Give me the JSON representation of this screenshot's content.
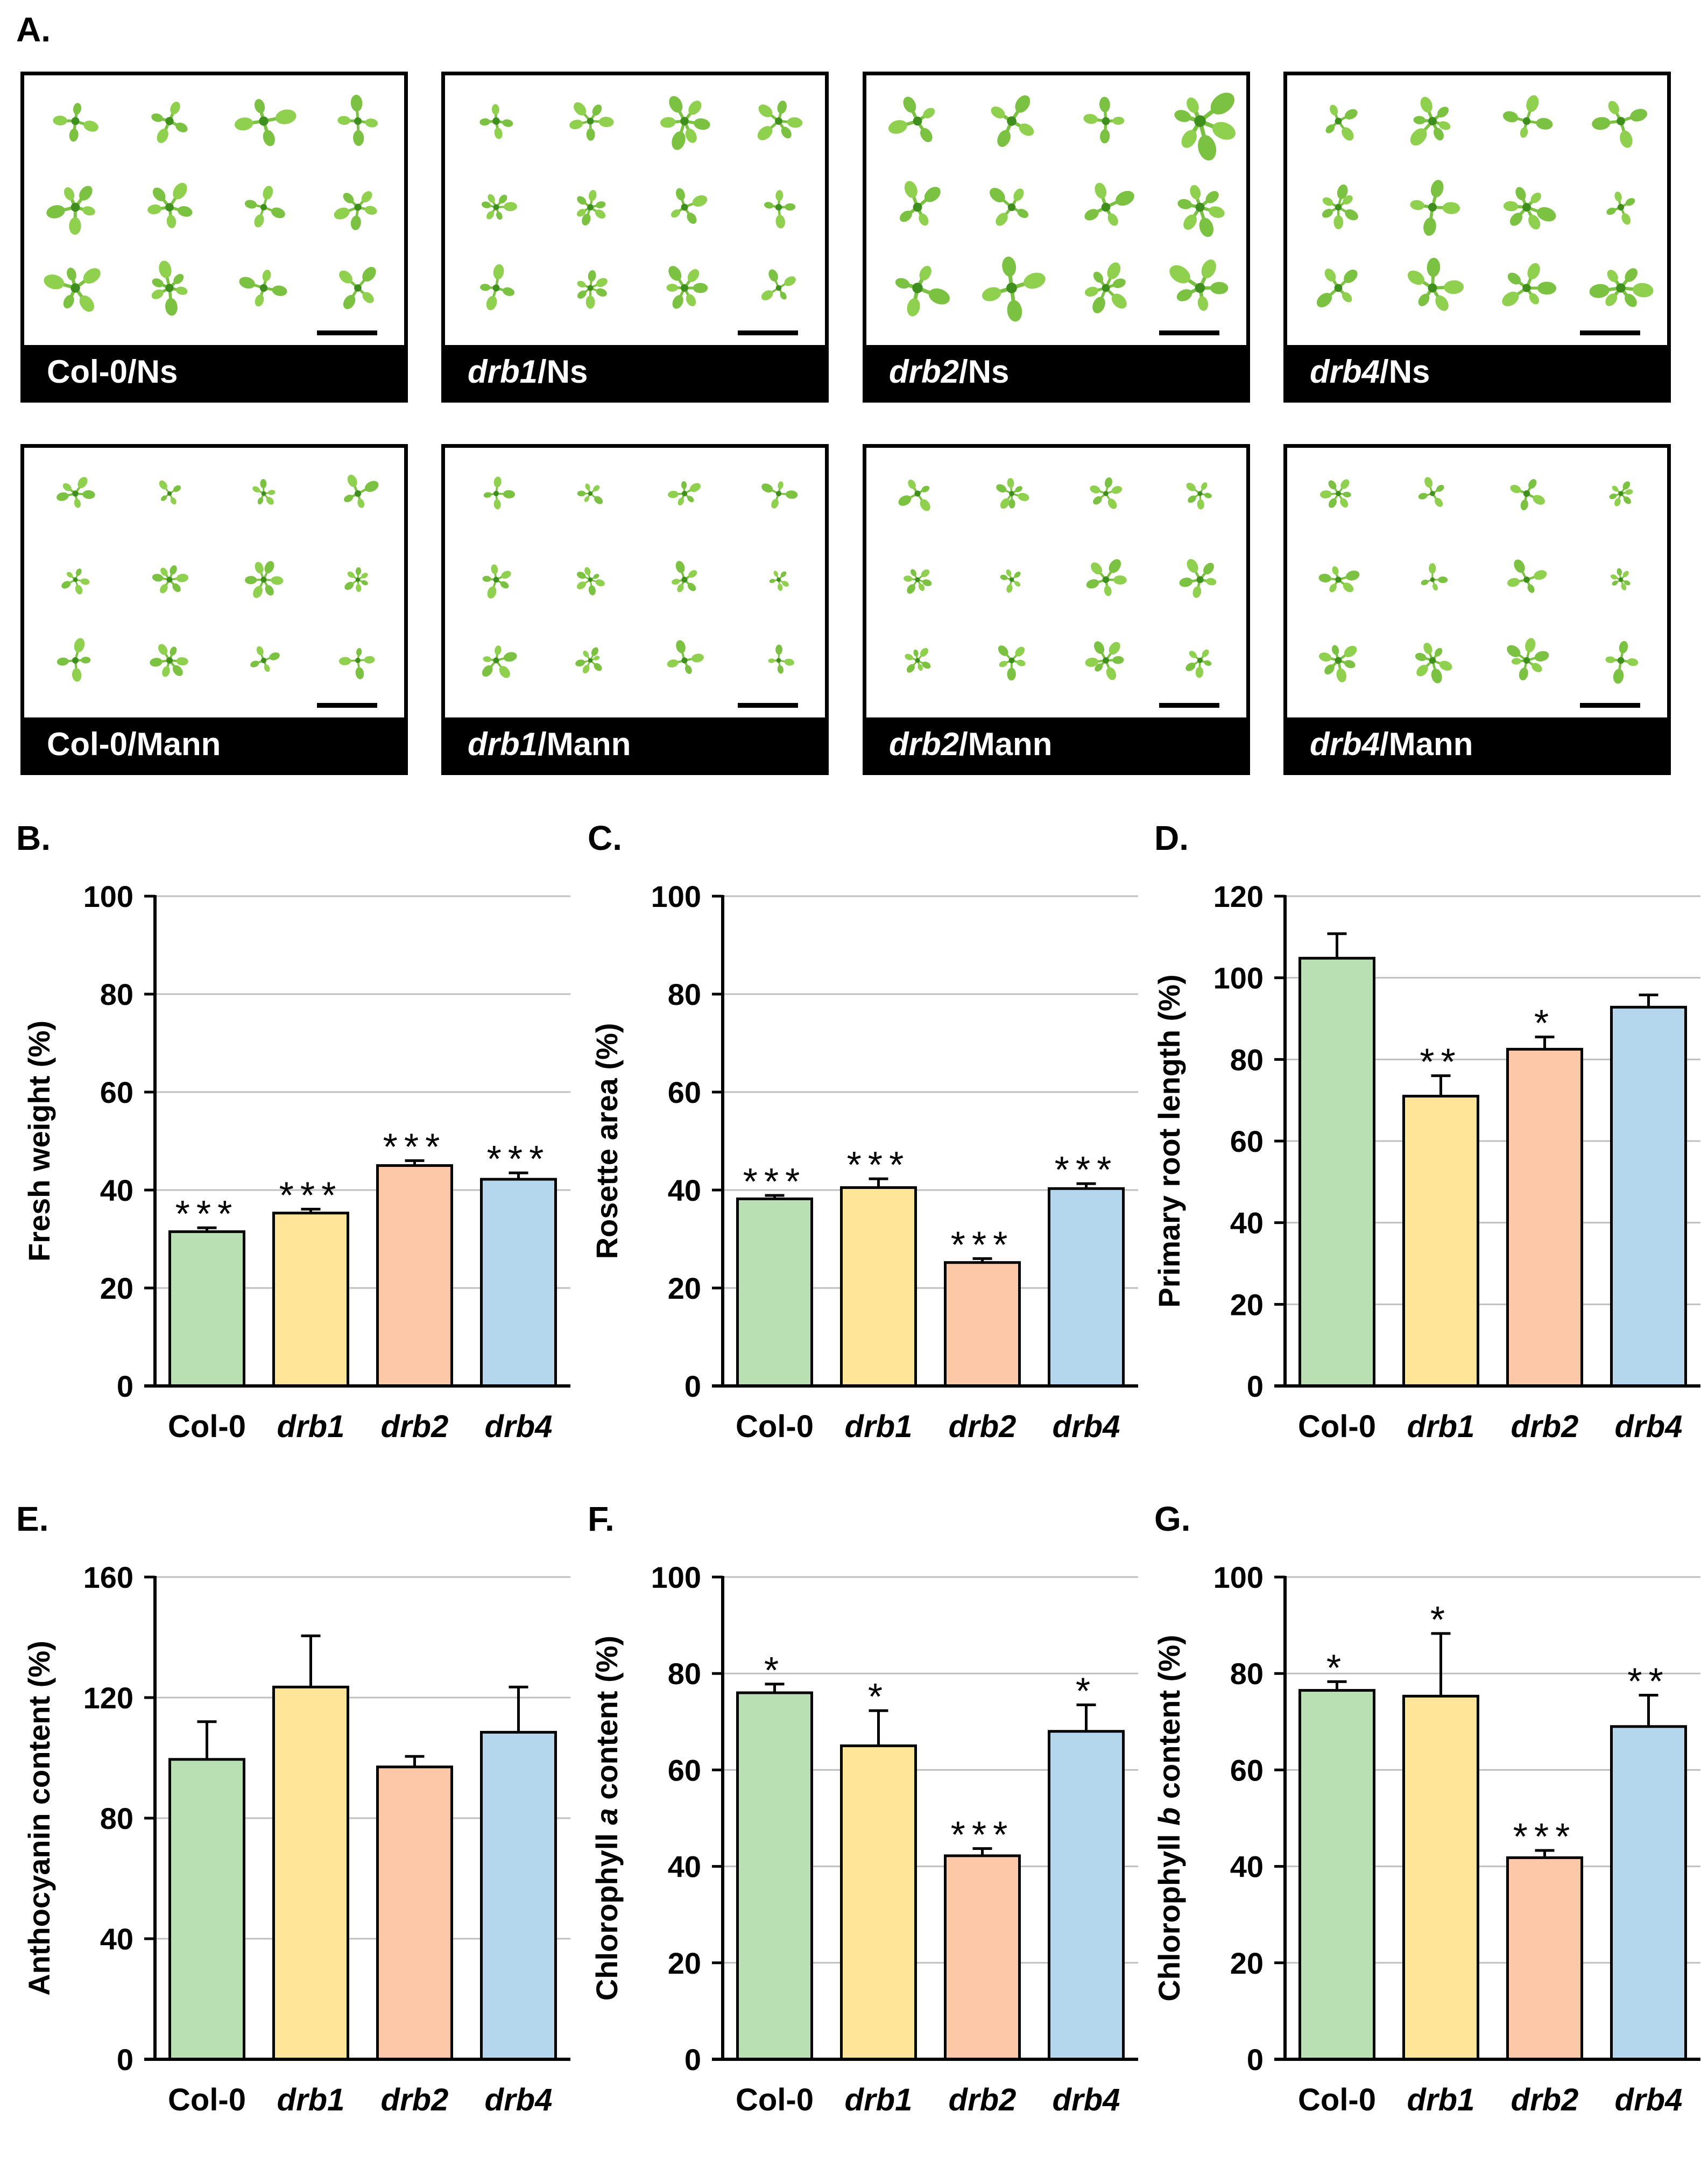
{
  "panel_labels": {
    "a": "A.",
    "b": "B.",
    "c": "C.",
    "d": "D.",
    "e": "E.",
    "f": "F.",
    "g": "G."
  },
  "photos": [
    {
      "genotype": "Col-0",
      "italic": false,
      "condition": "/Ns"
    },
    {
      "genotype": "drb1",
      "italic": true,
      "condition": "/Ns"
    },
    {
      "genotype": "drb2",
      "italic": true,
      "condition": "/Ns"
    },
    {
      "genotype": "drb4",
      "italic": true,
      "condition": "/Ns"
    },
    {
      "genotype": "Col-0",
      "italic": false,
      "condition": "/Mann"
    },
    {
      "genotype": "drb1",
      "italic": true,
      "condition": "/Mann"
    },
    {
      "genotype": "drb2",
      "italic": true,
      "condition": "/Mann"
    },
    {
      "genotype": "drb4",
      "italic": true,
      "condition": "/Mann"
    }
  ],
  "colors": {
    "col0": "#b9e0b3",
    "drb1": "#fee597",
    "drb2": "#fcc8a8",
    "drb4": "#b4d7ee",
    "grid": "#bfbfbf",
    "axis": "#000000",
    "leaf": "#7cc242",
    "leaf_dark": "#3f8f1f"
  },
  "chart_data": [
    {
      "id": "B",
      "type": "bar",
      "ylabel": "Fresh weight (%)",
      "ylim": [
        0,
        100
      ],
      "yticks": [
        0,
        20,
        40,
        60,
        80,
        100
      ],
      "categories": [
        "Col-0",
        "drb1",
        "drb2",
        "drb4"
      ],
      "values": [
        31.5,
        35.3,
        45.0,
        42.2
      ],
      "errors": [
        0.8,
        0.8,
        1.0,
        1.3
      ],
      "significance": [
        "***",
        "***",
        "***",
        "***"
      ]
    },
    {
      "id": "C",
      "type": "bar",
      "ylabel": "Rosette area (%)",
      "ylim": [
        0,
        100
      ],
      "yticks": [
        0,
        20,
        40,
        60,
        80,
        100
      ],
      "categories": [
        "Col-0",
        "drb1",
        "drb2",
        "drb4"
      ],
      "values": [
        38.2,
        40.5,
        25.2,
        40.3
      ],
      "errors": [
        0.7,
        1.8,
        0.8,
        1.0
      ],
      "significance": [
        "***",
        "***",
        "***",
        "***"
      ]
    },
    {
      "id": "D",
      "type": "bar",
      "ylabel": "Primary root length (%)",
      "ylim": [
        0,
        120
      ],
      "yticks": [
        0,
        20,
        40,
        60,
        80,
        100,
        120
      ],
      "categories": [
        "Col-0",
        "drb1",
        "drb2",
        "drb4"
      ],
      "values": [
        104.8,
        71.0,
        82.5,
        92.8
      ],
      "errors": [
        6.0,
        5.0,
        3.0,
        3.0
      ],
      "significance": [
        "",
        "**",
        "*",
        ""
      ]
    },
    {
      "id": "E",
      "type": "bar",
      "ylabel": "Anthocyanin content (%)",
      "ylim": [
        0,
        160
      ],
      "yticks": [
        0,
        40,
        80,
        120,
        160
      ],
      "categories": [
        "Col-0",
        "drb1",
        "drb2",
        "drb4"
      ],
      "values": [
        99.5,
        123.5,
        97.0,
        108.5
      ],
      "errors": [
        12.5,
        17.0,
        3.5,
        15.0
      ],
      "significance": [
        "",
        "",
        "",
        ""
      ]
    },
    {
      "id": "F",
      "type": "bar",
      "ylabel": "Chlorophyll a content (%)",
      "ylabel_parts": [
        "Chlorophyll ",
        "a",
        " content (%)"
      ],
      "ylim": [
        0,
        100
      ],
      "yticks": [
        0,
        20,
        40,
        60,
        80,
        100
      ],
      "categories": [
        "Col-0",
        "drb1",
        "drb2",
        "drb4"
      ],
      "values": [
        76.0,
        65.0,
        42.2,
        68.0
      ],
      "errors": [
        1.8,
        7.3,
        1.5,
        5.5
      ],
      "significance": [
        "*",
        "*",
        "***",
        "*"
      ]
    },
    {
      "id": "G",
      "type": "bar",
      "ylabel": "Chlorophyll b content (%)",
      "ylabel_parts": [
        "Chlorophyll ",
        "b",
        " content (%)"
      ],
      "ylim": [
        0,
        100
      ],
      "yticks": [
        0,
        20,
        40,
        60,
        80,
        100
      ],
      "categories": [
        "Col-0",
        "drb1",
        "drb2",
        "drb4"
      ],
      "values": [
        76.5,
        75.3,
        41.8,
        69.0
      ],
      "errors": [
        1.8,
        13.0,
        1.5,
        6.5
      ],
      "significance": [
        "*",
        "*",
        "***",
        "**"
      ]
    }
  ]
}
